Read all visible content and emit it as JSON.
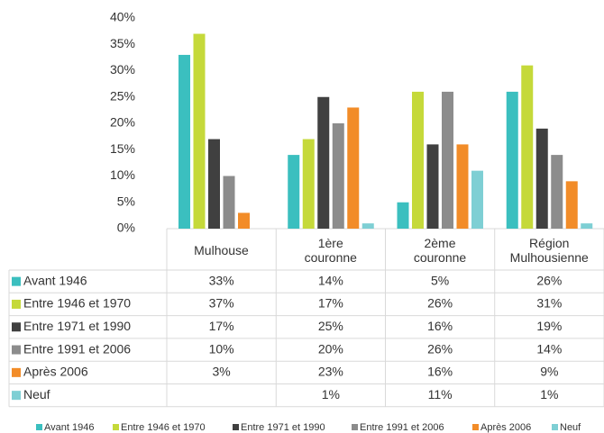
{
  "chart_data": {
    "type": "bar",
    "categories": [
      "Mulhouse",
      "1ère couronne",
      "2ème couronne",
      "Région Mulhousienne"
    ],
    "series": [
      {
        "name": "Avant 1946",
        "color": "#3bbfbf",
        "values": [
          33,
          14,
          5,
          26
        ],
        "value_labels": [
          "33%",
          "14%",
          "5%",
          "26%"
        ]
      },
      {
        "name": "Entre 1946 et 1970",
        "color": "#c5d93a",
        "values": [
          37,
          17,
          26,
          31
        ],
        "value_labels": [
          "37%",
          "17%",
          "26%",
          "31%"
        ]
      },
      {
        "name": "Entre 1971 et 1990",
        "color": "#404040",
        "values": [
          17,
          25,
          16,
          19
        ],
        "value_labels": [
          "17%",
          "25%",
          "16%",
          "19%"
        ]
      },
      {
        "name": "Entre 1991 et 2006",
        "color": "#8c8c8c",
        "values": [
          10,
          20,
          26,
          14
        ],
        "value_labels": [
          "10%",
          "20%",
          "26%",
          "14%"
        ]
      },
      {
        "name": "Après 2006",
        "color": "#f28c28",
        "values": [
          3,
          23,
          16,
          9
        ],
        "value_labels": [
          "3%",
          "23%",
          "16%",
          "9%"
        ]
      },
      {
        "name": "Neuf",
        "color": "#7ecfd4",
        "values": [
          null,
          1,
          11,
          1
        ],
        "value_labels": [
          null,
          "1%",
          "11%",
          "1%"
        ]
      }
    ],
    "ylim": [
      0,
      40
    ],
    "yticks": [
      {
        "value": 0,
        "label": "0%"
      },
      {
        "value": 5,
        "label": "5%"
      },
      {
        "value": 10,
        "label": "10%"
      },
      {
        "value": 15,
        "label": "15%"
      },
      {
        "value": 20,
        "label": "20%"
      },
      {
        "value": 25,
        "label": "25%"
      },
      {
        "value": 30,
        "label": "30%"
      },
      {
        "value": 35,
        "label": "35%"
      },
      {
        "value": 40,
        "label": "40%"
      }
    ],
    "legend": "bottom"
  }
}
